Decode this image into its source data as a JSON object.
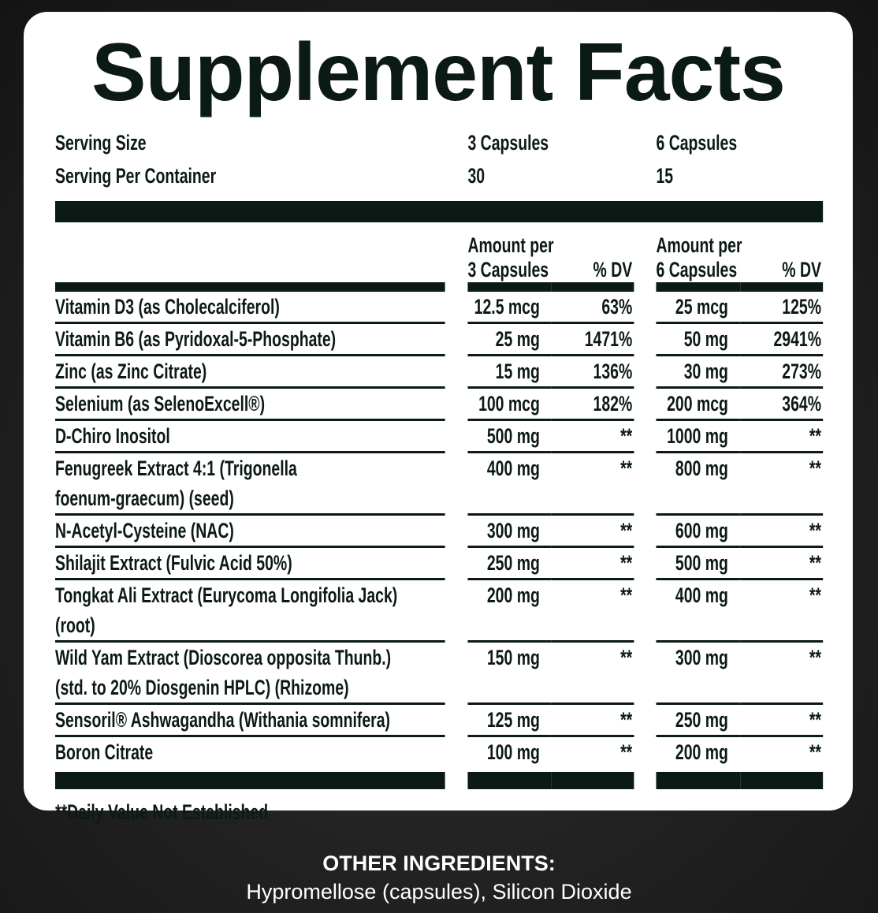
{
  "title": "Supplement Facts",
  "serving": [
    {
      "label": "Serving Size",
      "values": [
        "3 Capsules",
        "6 Capsules"
      ]
    },
    {
      "label": "Serving Per Container",
      "values": [
        "30",
        "15"
      ]
    }
  ],
  "columns": [
    {
      "amount_header": [
        "Amount per",
        "3 Capsules"
      ],
      "dv_header": "% DV"
    },
    {
      "amount_header": [
        "Amount per",
        "6 Capsules"
      ],
      "dv_header": "% DV"
    }
  ],
  "rows": [
    {
      "name": [
        "Vitamin D3 (as Cholecalciferol)"
      ],
      "amounts": [
        "12.5 mcg",
        "25 mcg"
      ],
      "dv": [
        "63%",
        "125%"
      ]
    },
    {
      "name": [
        "Vitamin B6 (as Pyridoxal-5-Phosphate)"
      ],
      "amounts": [
        "25 mg",
        "50 mg"
      ],
      "dv": [
        "1471%",
        "2941%"
      ]
    },
    {
      "name": [
        "Zinc (as Zinc Citrate)"
      ],
      "amounts": [
        "15 mg",
        "30 mg"
      ],
      "dv": [
        "136%",
        "273%"
      ]
    },
    {
      "name": [
        "Selenium (as SelenoExcell®)"
      ],
      "amounts": [
        "100 mcg",
        "200 mcg"
      ],
      "dv": [
        "182%",
        "364%"
      ]
    },
    {
      "name": [
        "D-Chiro Inositol"
      ],
      "amounts": [
        "500 mg",
        "1000 mg"
      ],
      "dv": [
        "**",
        "**"
      ]
    },
    {
      "name": [
        "Fenugreek Extract 4:1 (Trigonella",
        "foenum-graecum) (seed)"
      ],
      "amounts": [
        "400 mg",
        "800 mg"
      ],
      "dv": [
        "**",
        "**"
      ]
    },
    {
      "name": [
        "N-Acetyl-Cysteine (NAC)"
      ],
      "amounts": [
        "300 mg",
        "600 mg"
      ],
      "dv": [
        "**",
        "**"
      ]
    },
    {
      "name": [
        "Shilajit Extract (Fulvic Acid 50%)"
      ],
      "amounts": [
        "250 mg",
        "500 mg"
      ],
      "dv": [
        "**",
        "**"
      ]
    },
    {
      "name": [
        "Tongkat Ali Extract (Eurycoma Longifolia Jack)",
        "(root)"
      ],
      "amounts": [
        "200 mg",
        "400 mg"
      ],
      "dv": [
        "**",
        "**"
      ]
    },
    {
      "name": [
        "Wild Yam Extract (Dioscorea opposita Thunb.)",
        "(std. to 20% Diosgenin HPLC) (Rhizome)"
      ],
      "amounts": [
        "150 mg",
        "300 mg"
      ],
      "dv": [
        "**",
        "**"
      ]
    },
    {
      "name": [
        "Sensoril® Ashwagandha (Withania somnifera)"
      ],
      "amounts": [
        "125 mg",
        "250 mg"
      ],
      "dv": [
        "**",
        "**"
      ]
    },
    {
      "name": [
        "Boron Citrate"
      ],
      "amounts": [
        "100 mg",
        "200 mg"
      ],
      "dv": [
        "**",
        "**"
      ]
    }
  ],
  "footnote": "**Daily Value Not Established",
  "other_ingredients": {
    "title": "OTHER INGREDIENTS:",
    "text": "Hypromellose (capsules), Silicon Dioxide"
  }
}
